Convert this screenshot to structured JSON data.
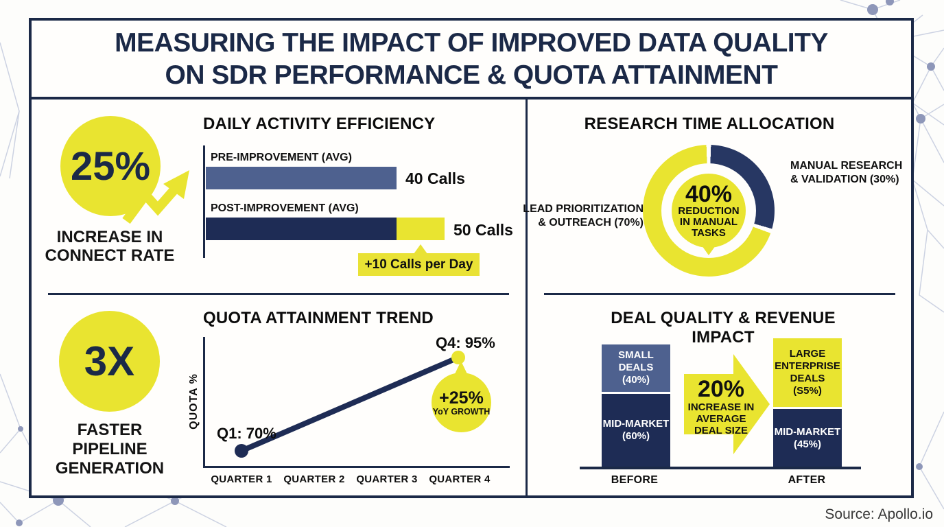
{
  "title": {
    "line1": "MEASURING THE IMPACT OF IMPROVED DATA QUALITY",
    "line2": "ON SDR PERFORMANCE & QUOTA ATTAINMENT"
  },
  "source": "Source: Apollo.io",
  "colors": {
    "navy": "#1b2947",
    "bar_navy": "#1e2c55",
    "donut_navy": "#273763",
    "medium_blue": "#4e618f",
    "yellow": "#e9e430",
    "callout_yellow": "#e9e235",
    "white": "#fffefc"
  },
  "stats": {
    "connect_rate": {
      "value": "25%",
      "label": "INCREASE IN\nCONNECT RATE"
    },
    "pipeline": {
      "value": "3X",
      "label": "FASTER\nPIPELINE\nGENERATION"
    }
  },
  "daily_activity": {
    "title": "DAILY ACTIVITY EFFICIENCY",
    "bars": [
      {
        "label": "PRE-IMPROVEMENT (AVG)",
        "value": 40,
        "value_label": "40 Calls"
      },
      {
        "label": "POST-IMPROVEMENT (AVG)",
        "value": 50,
        "value_label": "50 Calls"
      }
    ],
    "callout": "+10 Calls per Day"
  },
  "research_time": {
    "title": "RESEARCH TIME ALLOCATION",
    "center": {
      "value": "40%",
      "label": "REDUCTION\nIN MANUAL\nTASKS"
    },
    "segments": [
      {
        "label": "LEAD PRIORITIZATION\n& OUTREACH (70%)",
        "value": 70
      },
      {
        "label": "MANUAL RESEARCH\n& VALIDATION (30%)",
        "value": 30
      }
    ]
  },
  "quota_trend": {
    "title": "QUOTA ATTAINMENT TREND",
    "ylabel": "QUOTA %",
    "points": [
      {
        "label": "Q1: 70%",
        "value": 70
      },
      {
        "label": "Q4: 95%",
        "value": 95
      }
    ],
    "x_labels": [
      "QUARTER 1",
      "QUARTER 2",
      "QUARTER 3",
      "QUARTER 4"
    ],
    "growth": {
      "value": "+25%",
      "label": "YoY GROWTH"
    }
  },
  "deal_quality": {
    "title": "DEAL QUALITY & REVENUE IMPACT",
    "before": {
      "label": "BEFORE",
      "segments": [
        {
          "label": "SMALL DEALS\n(40%)",
          "pct": 40
        },
        {
          "label": "MID-MARKET\n(60%)",
          "pct": 60
        }
      ]
    },
    "after": {
      "label": "AFTER",
      "segments": [
        {
          "label": "LARGE\nENTERPRISE\nDEALS\n(S5%)",
          "pct": 55
        },
        {
          "label": "MID-MARKET\n(45%)",
          "pct": 45
        }
      ]
    },
    "arrow": {
      "value": "20%",
      "label": "INCREASE IN\nAVERAGE\nDEAL SIZE"
    }
  },
  "chart_data": [
    {
      "type": "bar",
      "orientation": "horizontal",
      "title": "DAILY ACTIVITY EFFICIENCY",
      "categories": [
        "PRE-IMPROVEMENT (AVG)",
        "POST-IMPROVEMENT (AVG)"
      ],
      "values": [
        40,
        50
      ],
      "unit": "Calls",
      "annotation": "+10 Calls per Day"
    },
    {
      "type": "pie",
      "donut": true,
      "title": "RESEARCH TIME ALLOCATION",
      "labels": [
        "LEAD PRIORITIZATION & OUTREACH",
        "MANUAL RESEARCH & VALIDATION"
      ],
      "values": [
        70,
        30
      ],
      "center_label": "40% REDUCTION IN MANUAL TASKS"
    },
    {
      "type": "line",
      "title": "QUOTA ATTAINMENT TREND",
      "x": [
        "QUARTER 1",
        "QUARTER 2",
        "QUARTER 3",
        "QUARTER 4"
      ],
      "points": [
        {
          "x": "QUARTER 1",
          "y": 70
        },
        {
          "x": "QUARTER 4",
          "y": 95
        }
      ],
      "ylabel": "QUOTA %",
      "annotation": "+25% YoY GROWTH"
    },
    {
      "type": "bar",
      "subtype": "stacked",
      "title": "DEAL QUALITY & REVENUE IMPACT",
      "categories": [
        "BEFORE",
        "AFTER"
      ],
      "series": [
        {
          "name": "SMALL DEALS",
          "values": [
            40,
            0
          ]
        },
        {
          "name": "LARGE ENTERPRISE DEALS",
          "values": [
            0,
            55
          ]
        },
        {
          "name": "MID-MARKET",
          "values": [
            60,
            45
          ]
        }
      ],
      "annotation": "20% INCREASE IN AVERAGE DEAL SIZE"
    }
  ]
}
